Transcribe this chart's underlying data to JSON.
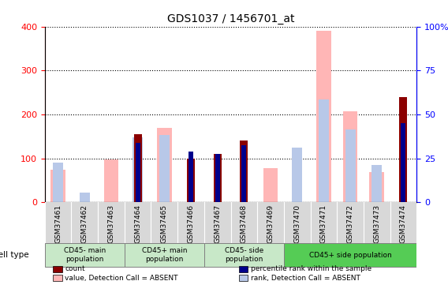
{
  "title": "GDS1037 / 1456701_at",
  "samples": [
    "GSM37461",
    "GSM37462",
    "GSM37463",
    "GSM37464",
    "GSM37465",
    "GSM37466",
    "GSM37467",
    "GSM37468",
    "GSM37469",
    "GSM37470",
    "GSM37471",
    "GSM37472",
    "GSM37473",
    "GSM37474"
  ],
  "count": [
    0,
    0,
    0,
    155,
    0,
    100,
    110,
    140,
    0,
    0,
    0,
    0,
    0,
    240
  ],
  "percentile_rank": [
    0,
    0,
    0,
    135,
    0,
    115,
    110,
    130,
    0,
    0,
    0,
    0,
    0,
    180
  ],
  "value_absent": [
    75,
    0,
    97,
    0,
    170,
    0,
    0,
    0,
    78,
    0,
    390,
    207,
    68,
    0
  ],
  "rank_absent": [
    90,
    22,
    0,
    148,
    153,
    0,
    0,
    0,
    0,
    125,
    235,
    165,
    85,
    0
  ],
  "cell_groups": [
    {
      "label": "CD45- main\npopulation",
      "start": 0,
      "end": 3
    },
    {
      "label": "CD45+ main\npopulation",
      "start": 3,
      "end": 6
    },
    {
      "label": "CD45- side\npopulation",
      "start": 6,
      "end": 9
    },
    {
      "label": "CD45+ side population",
      "start": 9,
      "end": 14
    }
  ],
  "ylim_left": [
    0,
    400
  ],
  "yticks_left": [
    0,
    100,
    200,
    300,
    400
  ],
  "yticks_right_labels": [
    "0",
    "25",
    "50",
    "75",
    "100%"
  ],
  "color_count": "#8b0000",
  "color_rank": "#00008b",
  "color_value_absent": "#ffb6b6",
  "color_rank_absent": "#b8c8e8",
  "group_color_light": "#c8e8c8",
  "group_color_dark": "#55cc55",
  "legend_items": [
    {
      "color": "#8b0000",
      "label": "count"
    },
    {
      "color": "#00008b",
      "label": "percentile rank within the sample"
    },
    {
      "color": "#ffb6b6",
      "label": "value, Detection Call = ABSENT"
    },
    {
      "color": "#b8c8e8",
      "label": "rank, Detection Call = ABSENT"
    }
  ]
}
